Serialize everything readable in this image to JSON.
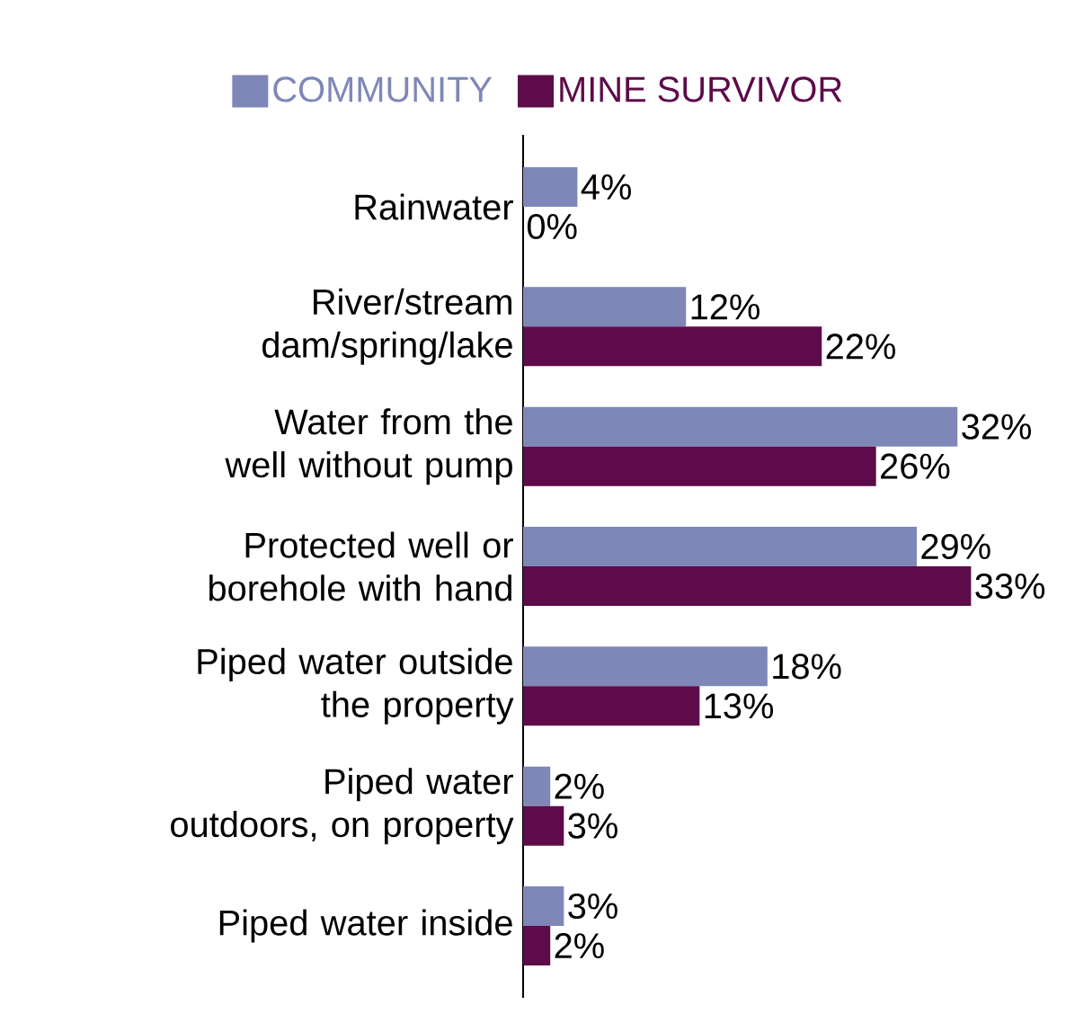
{
  "chart_data": {
    "type": "bar",
    "orientation": "horizontal",
    "categories": [
      "Rainwater",
      "River/stream dam/spring/lake",
      "Water from the well without pump",
      "Protected well or borehole with hand",
      "Piped water outside the property",
      "Piped water outdoors, on property",
      "Piped water inside"
    ],
    "series": [
      {
        "name": "COMMUNITY",
        "color": "#7f87b8",
        "values": [
          4,
          12,
          32,
          29,
          18,
          2,
          3
        ],
        "value_labels": [
          "4%",
          "12%",
          "32%",
          "29%",
          "18%",
          "2%",
          "3%"
        ]
      },
      {
        "name": "MINE SURVIVOR",
        "color": "#5e0b4a",
        "values": [
          0,
          22,
          26,
          33,
          13,
          3,
          2
        ],
        "value_labels": [
          "0%",
          "22%",
          "26%",
          "33%",
          "13%",
          "3%",
          "2%"
        ]
      }
    ],
    "legend": "top",
    "tick_labels": "y"
  }
}
